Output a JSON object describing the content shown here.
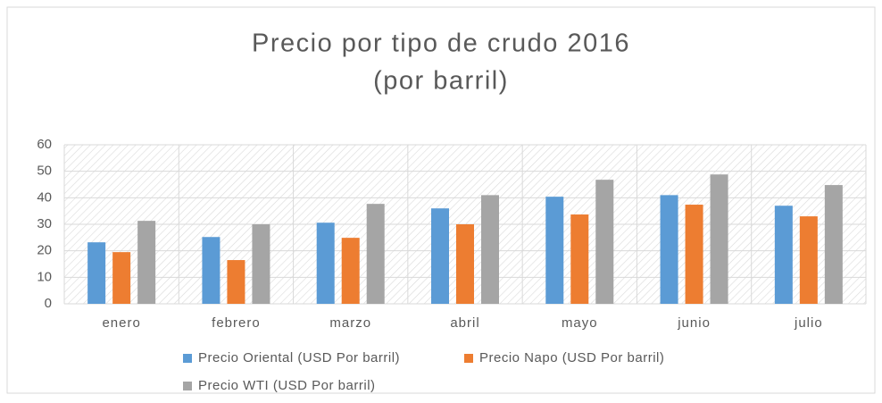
{
  "chart_data": {
    "type": "bar",
    "title": "Precio por tipo de crudo 2016",
    "subtitle": "(por barril)",
    "categories": [
      "enero",
      "febrero",
      "marzo",
      "abril",
      "mayo",
      "junio",
      "julio"
    ],
    "series": [
      {
        "name": "Precio Oriental (USD Por barril)",
        "color": "#5b9bd5",
        "values": [
          23.2,
          25.2,
          30.6,
          36,
          40.4,
          41,
          37
        ]
      },
      {
        "name": "Precio Napo (USD Por barril)",
        "color": "#ed7d31",
        "values": [
          19.5,
          16.5,
          24.9,
          30,
          33.7,
          37.4,
          33
        ]
      },
      {
        "name": "Precio WTI (USD Por barril)",
        "color": "#a5a5a5",
        "values": [
          31.3,
          30,
          37.7,
          41,
          46.8,
          48.8,
          44.8
        ]
      }
    ],
    "ylim": [
      0,
      60
    ],
    "yticks": [
      0,
      10,
      20,
      30,
      40,
      50,
      60
    ],
    "grid": true,
    "legend": "bottom"
  }
}
